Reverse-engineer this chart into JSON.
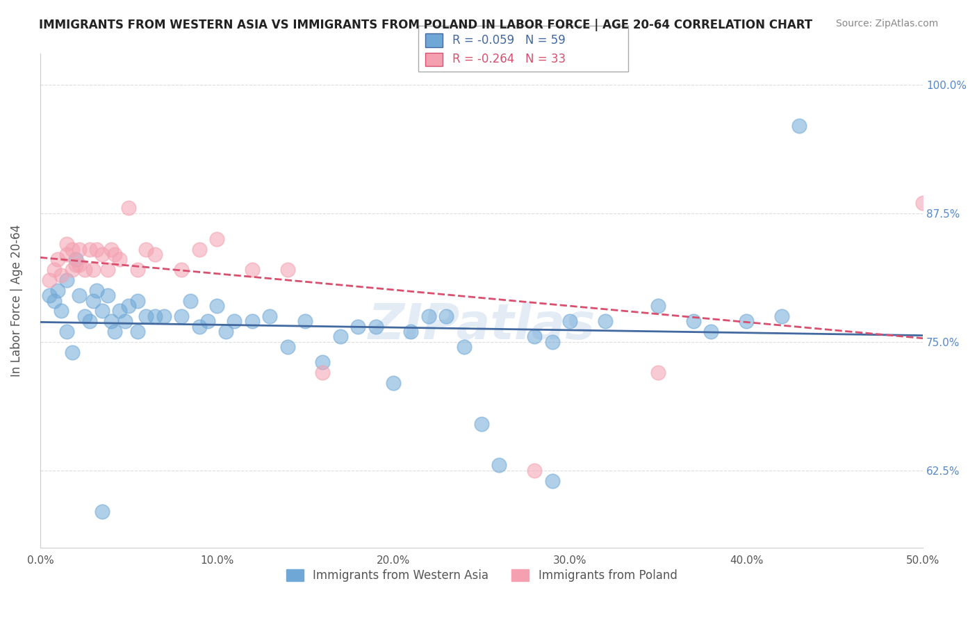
{
  "title": "IMMIGRANTS FROM WESTERN ASIA VS IMMIGRANTS FROM POLAND IN LABOR FORCE | AGE 20-64 CORRELATION CHART",
  "source": "Source: ZipAtlas.com",
  "ylabel": "In Labor Force | Age 20-64",
  "legend_label_blue": "Immigrants from Western Asia",
  "legend_label_pink": "Immigrants from Poland",
  "R_blue": -0.059,
  "N_blue": 59,
  "R_pink": -0.264,
  "N_pink": 33,
  "xlim": [
    0.0,
    0.5
  ],
  "ylim": [
    0.55,
    1.03
  ],
  "xtick_labels": [
    "0.0%",
    "10.0%",
    "20.0%",
    "30.0%",
    "40.0%",
    "50.0%"
  ],
  "xtick_vals": [
    0.0,
    0.1,
    0.2,
    0.3,
    0.4,
    0.5
  ],
  "ytick_labels": [
    "62.5%",
    "75.0%",
    "87.5%",
    "100.0%"
  ],
  "ytick_vals": [
    0.625,
    0.75,
    0.875,
    1.0
  ],
  "blue_scatter": [
    [
      0.005,
      0.795
    ],
    [
      0.008,
      0.79
    ],
    [
      0.01,
      0.8
    ],
    [
      0.012,
      0.78
    ],
    [
      0.015,
      0.76
    ],
    [
      0.018,
      0.74
    ],
    [
      0.015,
      0.81
    ],
    [
      0.02,
      0.83
    ],
    [
      0.022,
      0.795
    ],
    [
      0.025,
      0.775
    ],
    [
      0.028,
      0.77
    ],
    [
      0.03,
      0.79
    ],
    [
      0.032,
      0.8
    ],
    [
      0.035,
      0.78
    ],
    [
      0.038,
      0.795
    ],
    [
      0.04,
      0.77
    ],
    [
      0.042,
      0.76
    ],
    [
      0.045,
      0.78
    ],
    [
      0.048,
      0.77
    ],
    [
      0.05,
      0.785
    ],
    [
      0.055,
      0.79
    ],
    [
      0.055,
      0.76
    ],
    [
      0.06,
      0.775
    ],
    [
      0.065,
      0.775
    ],
    [
      0.07,
      0.775
    ],
    [
      0.08,
      0.775
    ],
    [
      0.085,
      0.79
    ],
    [
      0.09,
      0.765
    ],
    [
      0.095,
      0.77
    ],
    [
      0.1,
      0.785
    ],
    [
      0.105,
      0.76
    ],
    [
      0.11,
      0.77
    ],
    [
      0.12,
      0.77
    ],
    [
      0.13,
      0.775
    ],
    [
      0.14,
      0.745
    ],
    [
      0.15,
      0.77
    ],
    [
      0.16,
      0.73
    ],
    [
      0.17,
      0.755
    ],
    [
      0.18,
      0.765
    ],
    [
      0.19,
      0.765
    ],
    [
      0.2,
      0.71
    ],
    [
      0.21,
      0.76
    ],
    [
      0.22,
      0.775
    ],
    [
      0.23,
      0.775
    ],
    [
      0.24,
      0.745
    ],
    [
      0.25,
      0.67
    ],
    [
      0.26,
      0.63
    ],
    [
      0.28,
      0.755
    ],
    [
      0.29,
      0.75
    ],
    [
      0.3,
      0.77
    ],
    [
      0.32,
      0.77
    ],
    [
      0.35,
      0.785
    ],
    [
      0.37,
      0.77
    ],
    [
      0.38,
      0.76
    ],
    [
      0.4,
      0.77
    ],
    [
      0.42,
      0.775
    ],
    [
      0.035,
      0.585
    ],
    [
      0.29,
      0.615
    ],
    [
      0.43,
      0.96
    ]
  ],
  "pink_scatter": [
    [
      0.005,
      0.81
    ],
    [
      0.008,
      0.82
    ],
    [
      0.01,
      0.83
    ],
    [
      0.012,
      0.815
    ],
    [
      0.015,
      0.835
    ],
    [
      0.015,
      0.845
    ],
    [
      0.018,
      0.84
    ],
    [
      0.018,
      0.82
    ],
    [
      0.02,
      0.825
    ],
    [
      0.022,
      0.825
    ],
    [
      0.022,
      0.84
    ],
    [
      0.025,
      0.82
    ],
    [
      0.028,
      0.84
    ],
    [
      0.03,
      0.82
    ],
    [
      0.032,
      0.84
    ],
    [
      0.035,
      0.835
    ],
    [
      0.038,
      0.82
    ],
    [
      0.04,
      0.84
    ],
    [
      0.042,
      0.835
    ],
    [
      0.045,
      0.83
    ],
    [
      0.05,
      0.88
    ],
    [
      0.055,
      0.82
    ],
    [
      0.06,
      0.84
    ],
    [
      0.065,
      0.835
    ],
    [
      0.08,
      0.82
    ],
    [
      0.09,
      0.84
    ],
    [
      0.1,
      0.85
    ],
    [
      0.12,
      0.82
    ],
    [
      0.14,
      0.82
    ],
    [
      0.16,
      0.72
    ],
    [
      0.28,
      0.625
    ],
    [
      0.35,
      0.72
    ],
    [
      0.5,
      0.885
    ]
  ],
  "blue_color": "#6fa8d6",
  "pink_color": "#f4a0b0",
  "blue_line_color": "#4169a0",
  "pink_line_color": "#d94f6e",
  "watermark": "ZIPatlas",
  "background_color": "#ffffff",
  "grid_color": "#dddddd"
}
